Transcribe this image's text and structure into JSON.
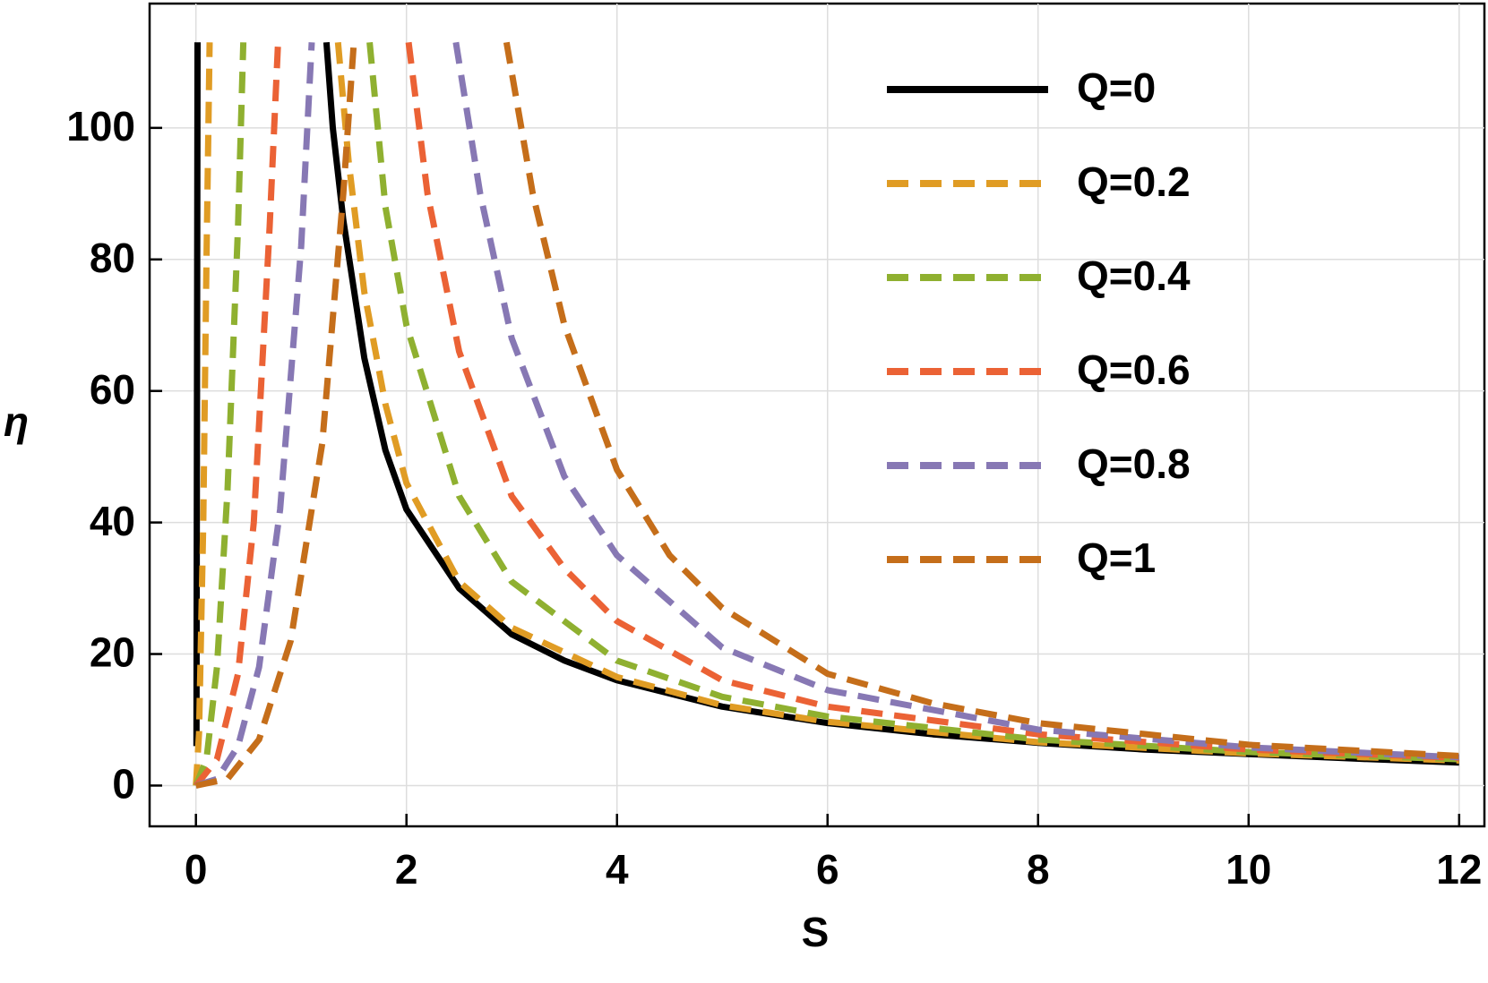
{
  "chart_data": {
    "type": "line",
    "x_label": "S",
    "y_label": "η",
    "xlim": [
      -0.44,
      12.24
    ],
    "ylim": [
      -6.2,
      118.9
    ],
    "xticks": [
      0,
      2,
      4,
      6,
      8,
      10,
      12
    ],
    "yticks": [
      0,
      20,
      40,
      60,
      80,
      100
    ],
    "grid": true,
    "legend": "top-right",
    "series": [
      {
        "name": "Q=0",
        "color": "#000000",
        "dashed": false,
        "x": [
          0.005,
          0.01,
          0.015,
          null,
          1.24,
          1.3,
          1.4,
          1.6,
          1.8,
          2,
          2.5,
          3,
          3.5,
          4,
          5,
          6,
          7,
          8,
          9,
          10,
          11,
          12
        ],
        "values": [
          6,
          60,
          113,
          null,
          113,
          100,
          86,
          65,
          51,
          42,
          30,
          23,
          19,
          16,
          12,
          9.5,
          7.8,
          6.5,
          5.5,
          4.8,
          4.1,
          3.5
        ]
      },
      {
        "name": "Q=0.2",
        "color": "#e09c24",
        "dashed": true,
        "x": [
          0,
          0.03,
          0.07,
          0.1,
          0.13,
          null,
          1.35,
          1.45,
          1.6,
          1.8,
          2,
          2.5,
          3,
          4,
          5,
          6,
          8,
          10,
          12
        ],
        "values": [
          0,
          8,
          40,
          80,
          113,
          null,
          113,
          95,
          75,
          58,
          46,
          31,
          24,
          16.5,
          12.2,
          9.7,
          6.6,
          4.9,
          3.8
        ]
      },
      {
        "name": "Q=0.4",
        "color": "#8fb030",
        "dashed": true,
        "x": [
          0,
          0.1,
          0.2,
          0.3,
          0.4,
          0.45,
          null,
          1.65,
          1.8,
          2,
          2.5,
          3,
          4,
          5,
          6,
          8,
          10,
          12
        ],
        "values": [
          0,
          4,
          18,
          45,
          85,
          113,
          null,
          113,
          88,
          70,
          44,
          31,
          19,
          13.5,
          10.5,
          7,
          5.1,
          4
        ]
      },
      {
        "name": "Q=0.6",
        "color": "#eb6235",
        "dashed": true,
        "x": [
          0,
          0.2,
          0.4,
          0.55,
          0.7,
          0.78,
          null,
          2.02,
          2.2,
          2.5,
          3,
          3.5,
          4,
          5,
          6,
          8,
          10,
          12
        ],
        "values": [
          0,
          4,
          17,
          40,
          85,
          113,
          null,
          113,
          90,
          66,
          44,
          33,
          25,
          16,
          12,
          7.8,
          5.5,
          4.2
        ]
      },
      {
        "name": "Q=0.8",
        "color": "#8778b4",
        "dashed": true,
        "x": [
          0,
          0.2,
          0.4,
          0.6,
          0.8,
          1,
          1.1,
          null,
          2.47,
          2.7,
          3,
          3.5,
          4,
          5,
          6,
          8,
          10,
          12
        ],
        "values": [
          0,
          1,
          6,
          18,
          42,
          82,
          113,
          null,
          113,
          90,
          68,
          47,
          35,
          21,
          14.5,
          8.5,
          5.8,
          4.3
        ]
      },
      {
        "name": "Q=1",
        "color": "#c56e1a",
        "dashed": true,
        "x": [
          0,
          0.3,
          0.6,
          0.9,
          1.2,
          1.4,
          1.5,
          null,
          2.95,
          3.2,
          3.5,
          4,
          4.5,
          5,
          6,
          7,
          8,
          10,
          12
        ],
        "values": [
          0,
          1,
          7,
          22,
          52,
          90,
          113,
          null,
          113,
          90,
          70,
          48,
          35,
          27,
          17,
          12.5,
          9.5,
          6.2,
          4.5
        ]
      }
    ]
  }
}
